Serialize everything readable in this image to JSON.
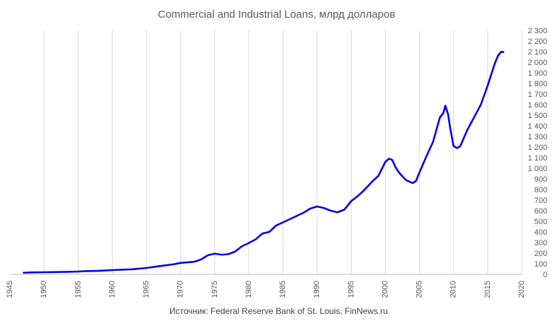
{
  "chart_data": {
    "type": "line",
    "title": "Commercial and Industrial Loans, млрд долларов",
    "source": "Источник: Federal Reserve Bank of St. Louis, FinNews.ru",
    "xlabel": "",
    "ylabel": "",
    "xlim": [
      1945,
      2020
    ],
    "ylim": [
      0,
      2300
    ],
    "x_ticks": [
      1945,
      1950,
      1955,
      1960,
      1965,
      1970,
      1975,
      1980,
      1985,
      1990,
      1995,
      2000,
      2005,
      2010,
      2015,
      2020
    ],
    "x_tick_labels": [
      "1945",
      "1950",
      "1955",
      "1960",
      "1965",
      "1970",
      "1975",
      "1980",
      "1985",
      "1990",
      "1995",
      "2000",
      "2005",
      "2010",
      "2015",
      "2020"
    ],
    "y_ticks": [
      0,
      100,
      200,
      300,
      400,
      500,
      600,
      700,
      800,
      900,
      1000,
      1100,
      1200,
      1300,
      1400,
      1500,
      1600,
      1700,
      1800,
      1900,
      2000,
      2100,
      2200,
      2300
    ],
    "y_tick_labels": [
      "0",
      "100",
      "200",
      "300",
      "400",
      "500",
      "600",
      "700",
      "800",
      "900",
      "1 000",
      "1 100",
      "1 200",
      "1 300",
      "1 400",
      "1 500",
      "1 600",
      "1 700",
      "1 800",
      "1 900",
      "2 000",
      "2 100",
      "2 200",
      "2 300"
    ],
    "grid": {
      "vertical": true,
      "horizontal": false
    },
    "y_axis_side": "right",
    "legend": "none",
    "colors": {
      "line": "#0000e6",
      "grid": "#d9d9d9",
      "text": "#595959"
    },
    "series": [
      {
        "x": [
          1947,
          1948,
          1950,
          1953,
          1955,
          1956,
          1958,
          1960,
          1963,
          1965,
          1967,
          1969,
          1970,
          1972,
          1973,
          1974,
          1975,
          1976,
          1977,
          1978,
          1979,
          1980,
          1981,
          1982,
          1983,
          1984,
          1985,
          1986,
          1987,
          1988,
          1989,
          1990,
          1991,
          1992,
          1993,
          1994,
          1995,
          1996,
          1997,
          1998,
          1999,
          2000,
          2000.5,
          2001,
          2001.5,
          2002,
          2003,
          2004,
          2004.5,
          2005,
          2006,
          2007,
          2008,
          2008.5,
          2008.8,
          2009.2,
          2009.5,
          2010,
          2010.5,
          2011,
          2012,
          2013,
          2014,
          2015,
          2016,
          2016.5,
          2017,
          2017.3
        ],
        "y": [
          15,
          18,
          20,
          23,
          26,
          30,
          33,
          40,
          48,
          60,
          78,
          95,
          108,
          118,
          140,
          180,
          195,
          185,
          190,
          215,
          265,
          295,
          330,
          385,
          400,
          460,
          490,
          520,
          550,
          580,
          620,
          640,
          625,
          600,
          585,
          610,
          690,
          740,
          800,
          870,
          930,
          1060,
          1090,
          1080,
          1010,
          960,
          890,
          860,
          880,
          960,
          1110,
          1250,
          1480,
          1520,
          1590,
          1510,
          1380,
          1210,
          1190,
          1210,
          1360,
          1480,
          1600,
          1780,
          1980,
          2060,
          2100,
          2095
        ]
      }
    ]
  }
}
